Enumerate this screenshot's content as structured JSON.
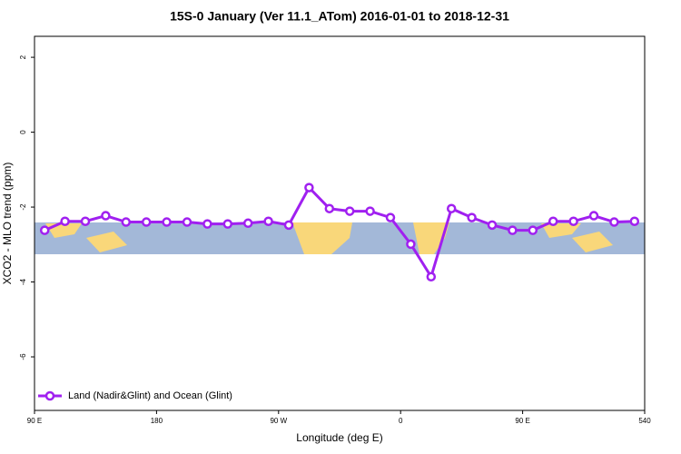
{
  "chart_data": {
    "type": "line",
    "title": "15S-0 January (Ver 11.1_ATom)   2016-01-01 to 2018-12-31",
    "xlabel": "Longitude (deg E)",
    "ylabel": "XCO2 - MLO trend (ppm)",
    "x": [
      97.5,
      112.5,
      127.5,
      142.5,
      157.5,
      172.5,
      187.5,
      202.5,
      217.5,
      232.5,
      247.5,
      262.5,
      277.5,
      292.5,
      307.5,
      322.5,
      337.5,
      352.5,
      367.5,
      382.5,
      397.5,
      412.5,
      427.5,
      442.5,
      457.5,
      472.5,
      487.5,
      502.5,
      517.5,
      532.5
    ],
    "series": [
      {
        "name": "Land (Nadir&Glint) and Ocean (Glint)",
        "color": "#a020f0",
        "values": [
          -2.62,
          -2.38,
          -2.38,
          -2.23,
          -2.4,
          -2.4,
          -2.4,
          -2.4,
          -2.45,
          -2.45,
          -2.43,
          -2.38,
          -2.48,
          -1.48,
          -2.04,
          -2.11,
          -2.11,
          -2.28,
          -2.99,
          -3.86,
          -2.04,
          -2.28,
          -2.48,
          -2.62,
          -2.62,
          -2.38,
          -2.38,
          -2.23,
          -2.4,
          -2.38
        ]
      }
    ],
    "xlim": [
      90,
      540
    ],
    "xticks": [
      {
        "value": 90,
        "label": "90 E"
      },
      180,
      {
        "value": 270,
        "label": "90 W"
      },
      {
        "value": 360,
        "label": "0"
      },
      {
        "value": 450,
        "label": "90 E"
      },
      540
    ],
    "ylim": [
      -7.43,
      2.56
    ],
    "yticks": [
      -6,
      -4,
      -2,
      0,
      2
    ],
    "legend": "bottom-left"
  }
}
